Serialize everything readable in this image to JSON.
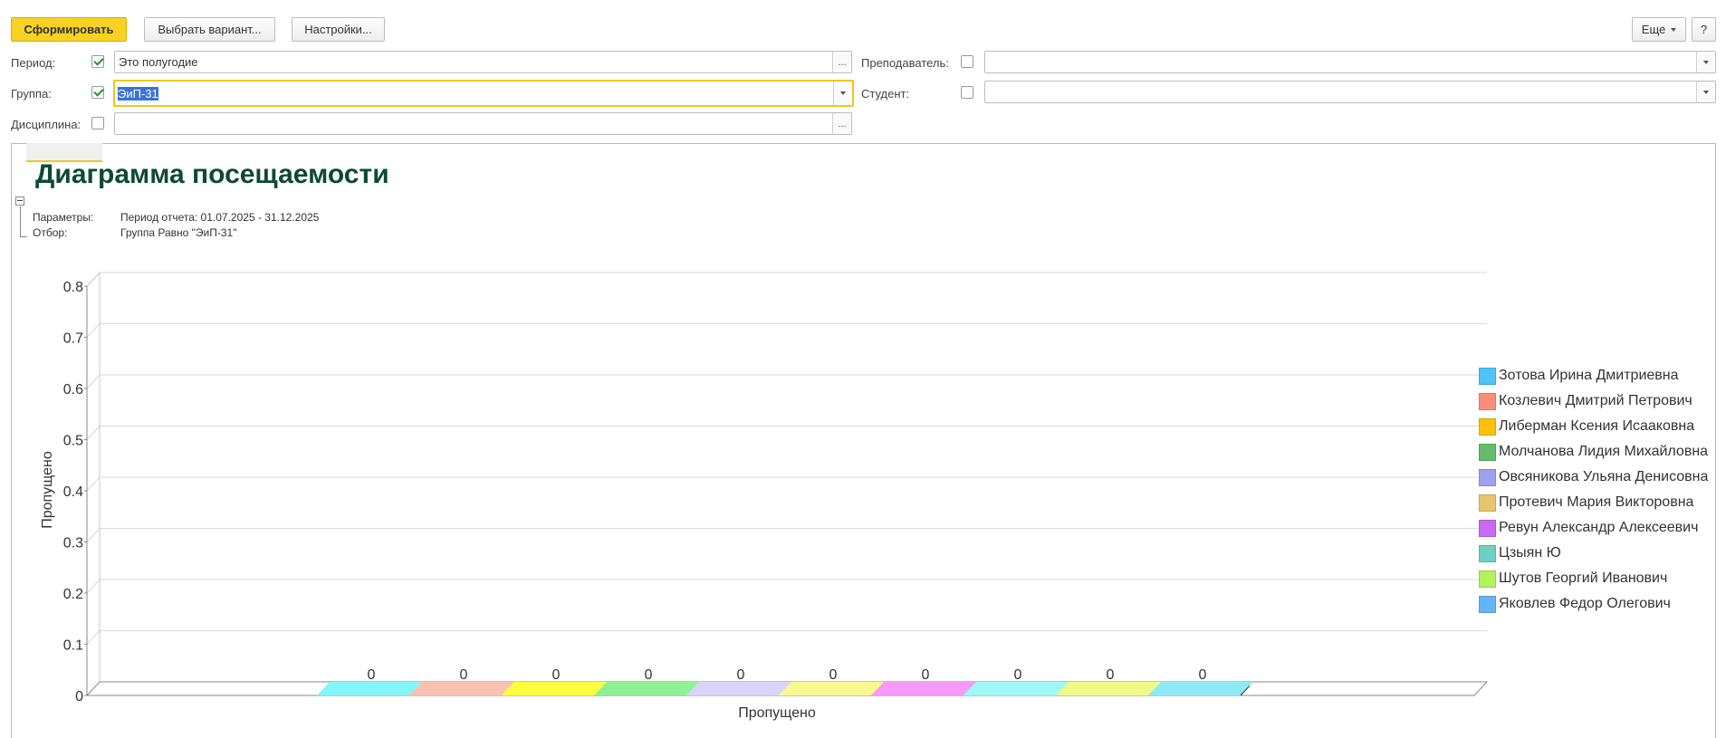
{
  "toolbar": {
    "generate_label": "Сформировать",
    "choose_variant_label": "Выбрать вариант...",
    "settings_label": "Настройки...",
    "more_label": "Еще",
    "help_label": "?"
  },
  "filters": {
    "period": {
      "label": "Период:",
      "checked": true,
      "value": "Это полугодие",
      "button": "..."
    },
    "group": {
      "label": "Группа:",
      "checked": true,
      "value": "ЭиП-31"
    },
    "discipline": {
      "label": "Дисциплина:",
      "checked": false,
      "value": "",
      "button": "..."
    },
    "teacher": {
      "label": "Преподаватель:",
      "checked": false,
      "value": ""
    },
    "student": {
      "label": "Студент:",
      "checked": false,
      "value": ""
    }
  },
  "report": {
    "title": "Диаграмма посещаемости",
    "params_label": "Параметры:",
    "params_value": "Период отчета: 01.07.2025 - 31.12.2025",
    "filter_label": "Отбор:",
    "filter_value": "Группа Равно \"ЭиП-31\""
  },
  "chart_data": {
    "type": "bar",
    "categories": [
      "Пропущено"
    ],
    "xlabel": "Пропущено",
    "ylabel": "Пропущено",
    "ylim": [
      0,
      0.8
    ],
    "yticks": [
      "0",
      "0.1",
      "0.2",
      "0.3",
      "0.4",
      "0.5",
      "0.6",
      "0.7",
      "0.8"
    ],
    "grid": true,
    "legend_position": "right",
    "series": [
      {
        "name": "Зотова Ирина Дмитриевна",
        "values": [
          0
        ],
        "color": "#4fc3f7"
      },
      {
        "name": "Козлевич Дмитрий Петрович",
        "values": [
          0
        ],
        "color": "#fb8c7c"
      },
      {
        "name": "Либерман Ксения Исааковна",
        "values": [
          0
        ],
        "color": "#ffc107"
      },
      {
        "name": "Молчанова Лидия Михайловна",
        "values": [
          0
        ],
        "color": "#66bb6a"
      },
      {
        "name": "Овсяникова Ульяна Денисовна",
        "values": [
          0
        ],
        "color": "#9fa0f0"
      },
      {
        "name": "Протевич Мария Викторовна",
        "values": [
          0
        ],
        "color": "#e6c56e"
      },
      {
        "name": "Ревун Александр Алексеевич",
        "values": [
          0
        ],
        "color": "#c86af5"
      },
      {
        "name": "Цзыян Ю",
        "values": [
          0
        ],
        "color": "#6fcfc3"
      },
      {
        "name": "Шутов Георгий Иванович",
        "values": [
          0
        ],
        "color": "#b3f25a"
      },
      {
        "name": "Яковлев Федор Олегович",
        "values": [
          0
        ],
        "color": "#64b5f6"
      }
    ],
    "bar_top_colors": [
      "#85f5fa",
      "#fbc1b0",
      "#ffff40",
      "#90f095",
      "#d8d4fa",
      "#faf890",
      "#f59af7",
      "#9ef8f6",
      "#effa89",
      "#8fe9f5"
    ]
  }
}
